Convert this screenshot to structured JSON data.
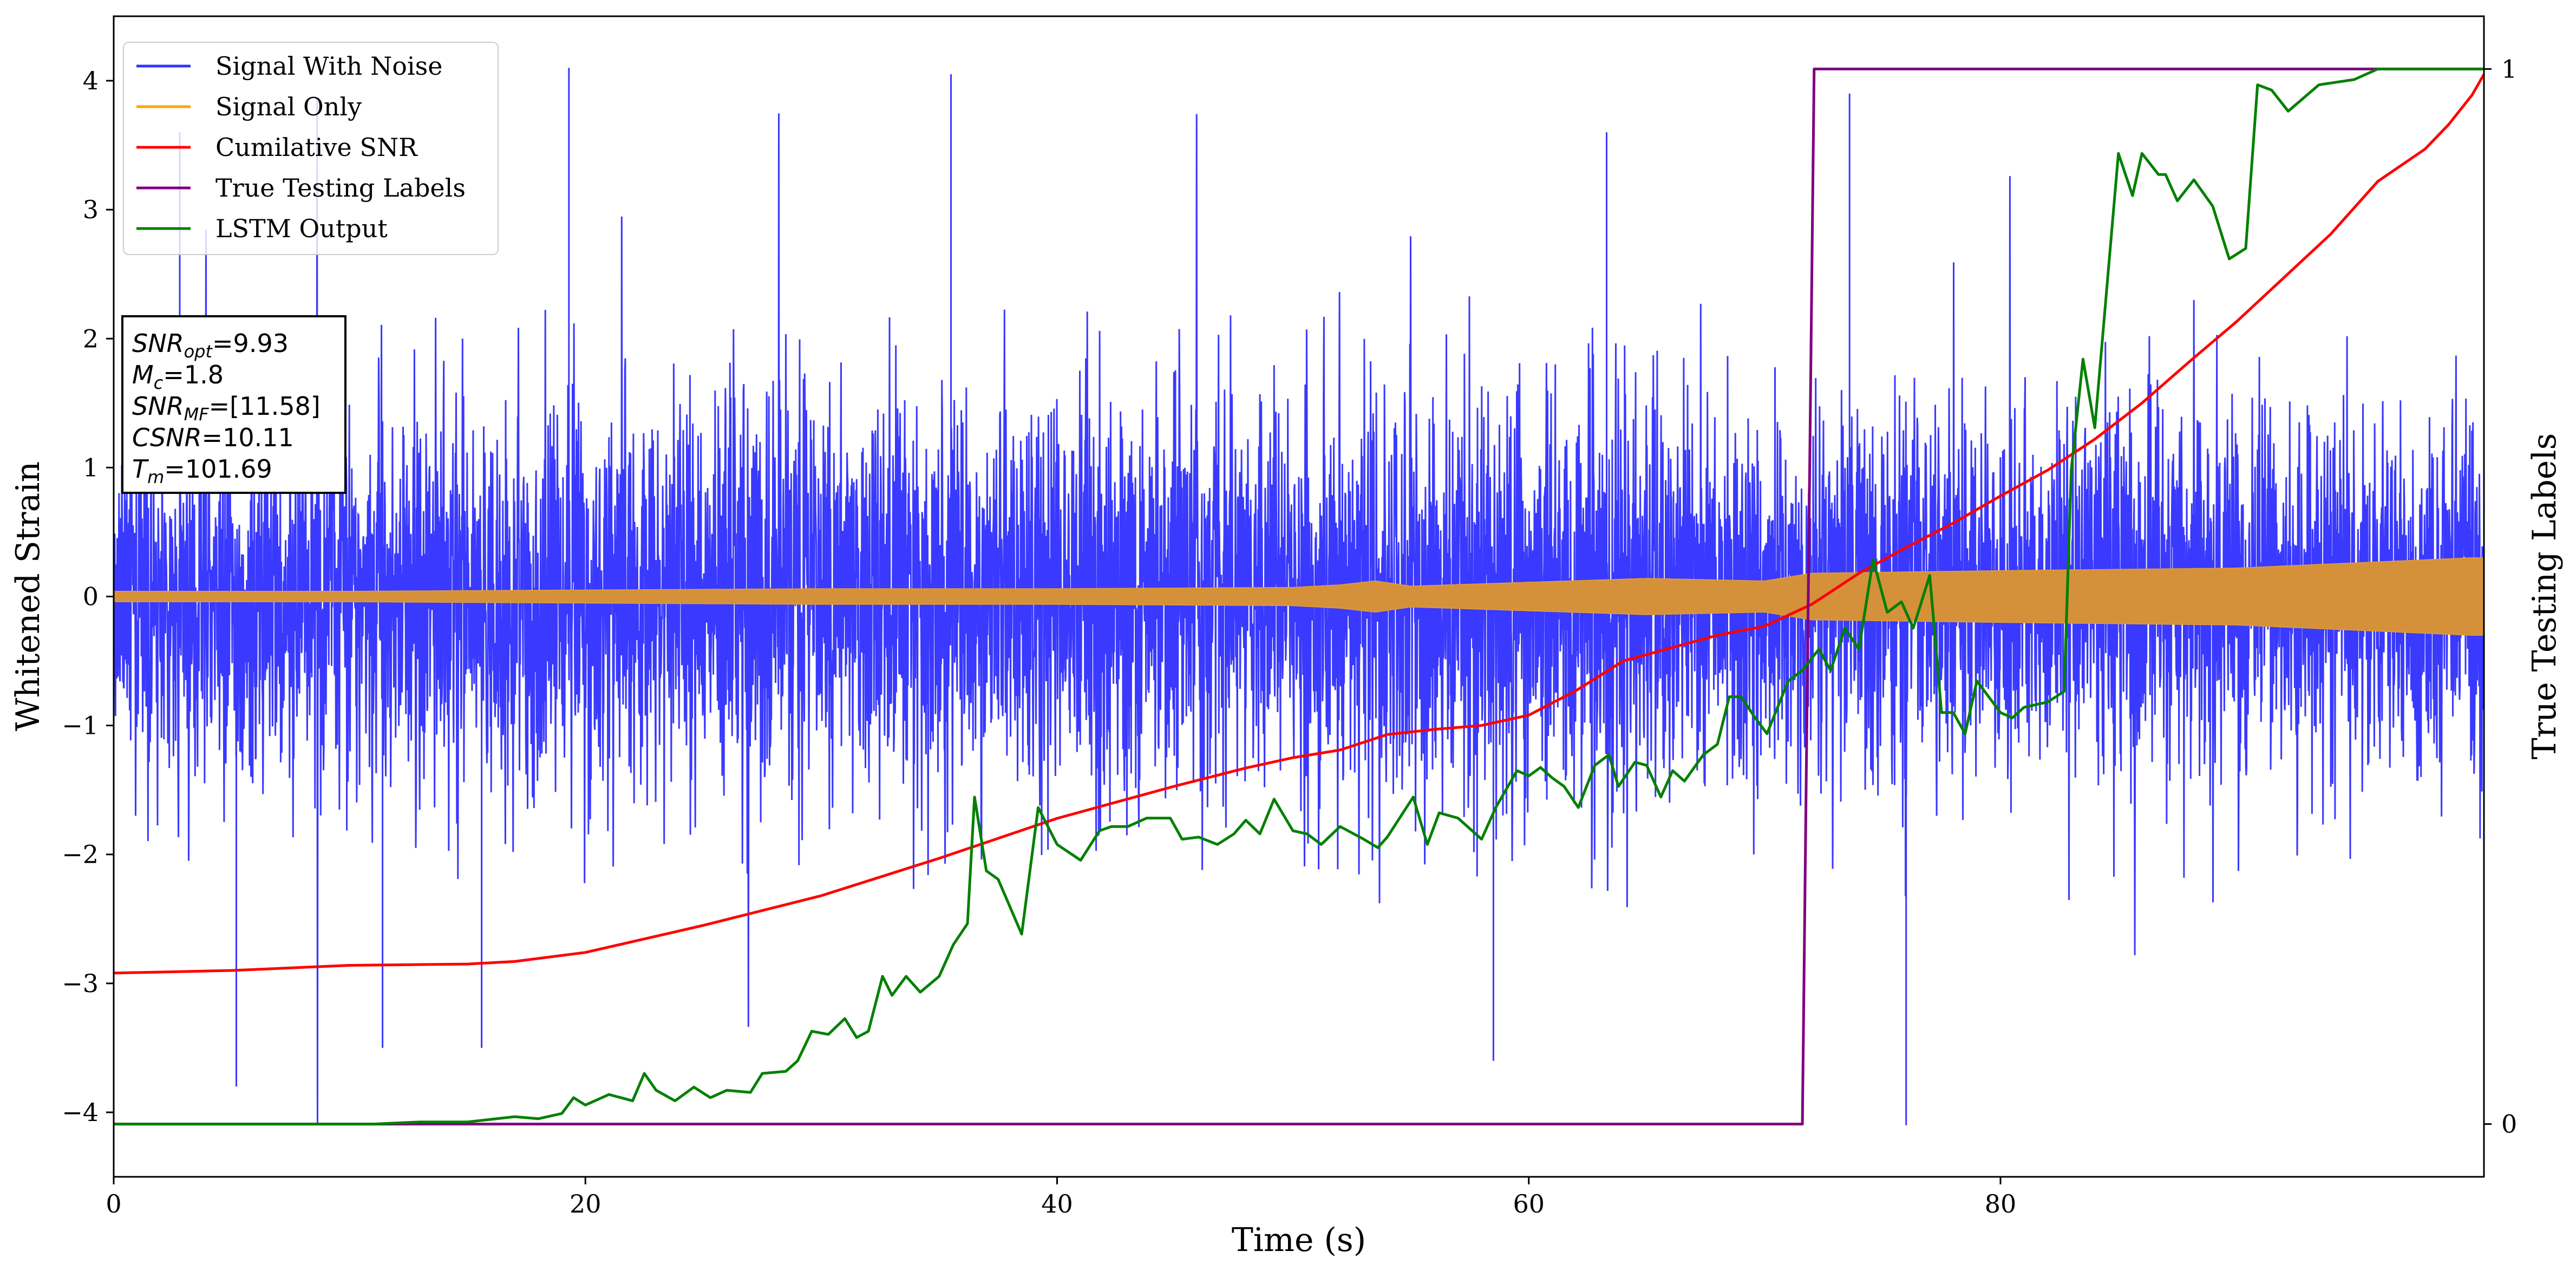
{
  "chart_data": {
    "type": "line",
    "xlabel": "Time (s)",
    "ylabel": "Whitened Strain",
    "y2label": "True Testing Labels",
    "xlim": [
      0,
      100.5
    ],
    "ylim": [
      -4.5,
      4.5
    ],
    "y2lim": [
      -0.05,
      1.05
    ],
    "x_ticks": [
      0,
      20,
      40,
      60,
      80
    ],
    "x_tick_labels": [
      "0",
      "20",
      "40",
      "60",
      "80"
    ],
    "y_ticks": [
      -4,
      -3,
      -2,
      -1,
      0,
      1,
      2,
      3,
      4
    ],
    "y_tick_labels": [
      "−4",
      "−3",
      "−2",
      "−1",
      "0",
      "1",
      "2",
      "3",
      "4"
    ],
    "y2_ticks": [
      0,
      1
    ],
    "y2_tick_labels": [
      "0",
      "1"
    ],
    "grid": false,
    "legend_position": "top-left",
    "series": [
      {
        "name": "Signal With Noise",
        "axis": "left",
        "color": "#3333ff",
        "kind": "dense-noise",
        "amplitude_envelope": {
          "x": [
            0,
            20,
            40,
            60,
            72,
            80,
            100
          ],
          "typical_abs": [
            0.8,
            0.9,
            0.9,
            0.9,
            0.9,
            0.9,
            0.85
          ]
        },
        "notable_peaks": [
          {
            "x": 19.3,
            "y": 4.1
          },
          {
            "x": 35.5,
            "y": 4.05
          },
          {
            "x": 73.6,
            "y": 3.9
          },
          {
            "x": 2.8,
            "y": 3.6
          },
          {
            "x": 5.2,
            "y": -3.8
          },
          {
            "x": 63.3,
            "y": 3.6
          },
          {
            "x": 76.0,
            "y": -4.1
          },
          {
            "x": 58.5,
            "y": -3.6
          },
          {
            "x": 15.6,
            "y": -3.5
          },
          {
            "x": 11.4,
            "y": -3.5
          }
        ]
      },
      {
        "name": "Signal Only",
        "axis": "left",
        "color": "#ffa500",
        "kind": "oscillation-band",
        "envelope": {
          "x": [
            0,
            10,
            20,
            30,
            40,
            50,
            52,
            53.5,
            55,
            60,
            65,
            70,
            72,
            80,
            90,
            95,
            100
          ],
          "half_width": [
            0.04,
            0.04,
            0.05,
            0.06,
            0.06,
            0.07,
            0.09,
            0.12,
            0.08,
            0.11,
            0.14,
            0.12,
            0.18,
            0.2,
            0.22,
            0.26,
            0.3
          ]
        }
      },
      {
        "name": "Cumilative SNR",
        "axis": "left",
        "color": "#ff0000",
        "points": [
          [
            0,
            -2.92
          ],
          [
            5,
            -2.9
          ],
          [
            10,
            -2.86
          ],
          [
            15,
            -2.85
          ],
          [
            17,
            -2.83
          ],
          [
            20,
            -2.76
          ],
          [
            25,
            -2.55
          ],
          [
            30,
            -2.32
          ],
          [
            35,
            -2.03
          ],
          [
            40,
            -1.72
          ],
          [
            45,
            -1.47
          ],
          [
            48,
            -1.33
          ],
          [
            50,
            -1.25
          ],
          [
            52,
            -1.19
          ],
          [
            54,
            -1.07
          ],
          [
            56,
            -1.03
          ],
          [
            58,
            -1.0
          ],
          [
            60,
            -0.92
          ],
          [
            62,
            -0.73
          ],
          [
            64,
            -0.5
          ],
          [
            66,
            -0.4
          ],
          [
            68,
            -0.3
          ],
          [
            70,
            -0.23
          ],
          [
            72,
            -0.06
          ],
          [
            74,
            0.18
          ],
          [
            76,
            0.38
          ],
          [
            78,
            0.57
          ],
          [
            80,
            0.78
          ],
          [
            82,
            0.98
          ],
          [
            84,
            1.22
          ],
          [
            86,
            1.5
          ],
          [
            88,
            1.82
          ],
          [
            90,
            2.13
          ],
          [
            92,
            2.47
          ],
          [
            94,
            2.81
          ],
          [
            96,
            3.22
          ],
          [
            98,
            3.47
          ],
          [
            99,
            3.66
          ],
          [
            100,
            3.89
          ],
          [
            100.5,
            4.05
          ]
        ]
      },
      {
        "name": "True Testing Labels",
        "axis": "right",
        "color": "#800080",
        "points": [
          [
            0,
            0
          ],
          [
            71.6,
            0
          ],
          [
            72.1,
            1
          ],
          [
            100.5,
            1
          ]
        ]
      },
      {
        "name": "LSTM Output",
        "axis": "right",
        "color": "#008000",
        "points": [
          [
            0,
            0
          ],
          [
            11,
            0
          ],
          [
            13,
            0.002
          ],
          [
            15,
            0.002
          ],
          [
            17,
            0.007
          ],
          [
            18,
            0.005
          ],
          [
            19,
            0.01
          ],
          [
            19.5,
            0.025
          ],
          [
            20,
            0.018
          ],
          [
            21,
            0.028
          ],
          [
            22,
            0.022
          ],
          [
            22.5,
            0.048
          ],
          [
            23,
            0.032
          ],
          [
            23.8,
            0.022
          ],
          [
            24.6,
            0.035
          ],
          [
            25.3,
            0.025
          ],
          [
            26,
            0.032
          ],
          [
            27,
            0.03
          ],
          [
            27.5,
            0.048
          ],
          [
            28.5,
            0.05
          ],
          [
            29,
            0.06
          ],
          [
            29.6,
            0.088
          ],
          [
            30.3,
            0.085
          ],
          [
            31,
            0.1
          ],
          [
            31.5,
            0.082
          ],
          [
            32,
            0.088
          ],
          [
            32.6,
            0.14
          ],
          [
            33,
            0.122
          ],
          [
            33.6,
            0.14
          ],
          [
            34.2,
            0.125
          ],
          [
            35,
            0.14
          ],
          [
            35.6,
            0.17
          ],
          [
            36.2,
            0.19
          ],
          [
            36.5,
            0.31
          ],
          [
            37,
            0.24
          ],
          [
            37.5,
            0.232
          ],
          [
            38.5,
            0.18
          ],
          [
            39.2,
            0.3
          ],
          [
            40,
            0.265
          ],
          [
            41,
            0.25
          ],
          [
            41.8,
            0.278
          ],
          [
            42.3,
            0.282
          ],
          [
            43,
            0.282
          ],
          [
            43.8,
            0.29
          ],
          [
            44.8,
            0.29
          ],
          [
            45.3,
            0.27
          ],
          [
            46,
            0.272
          ],
          [
            46.8,
            0.265
          ],
          [
            47.5,
            0.275
          ],
          [
            48,
            0.288
          ],
          [
            48.6,
            0.275
          ],
          [
            49.2,
            0.308
          ],
          [
            50,
            0.278
          ],
          [
            50.6,
            0.275
          ],
          [
            51.2,
            0.265
          ],
          [
            52,
            0.282
          ],
          [
            53,
            0.27
          ],
          [
            53.6,
            0.262
          ],
          [
            54,
            0.272
          ],
          [
            55.1,
            0.31
          ],
          [
            55.7,
            0.265
          ],
          [
            56.2,
            0.295
          ],
          [
            57,
            0.29
          ],
          [
            58,
            0.27
          ],
          [
            58.6,
            0.3
          ],
          [
            59.5,
            0.335
          ],
          [
            60,
            0.33
          ],
          [
            60.5,
            0.338
          ],
          [
            61,
            0.328
          ],
          [
            61.5,
            0.32
          ],
          [
            62.1,
            0.3
          ],
          [
            62.8,
            0.34
          ],
          [
            63.4,
            0.35
          ],
          [
            63.8,
            0.32
          ],
          [
            64.5,
            0.343
          ],
          [
            65,
            0.34
          ],
          [
            65.6,
            0.31
          ],
          [
            66.1,
            0.335
          ],
          [
            66.6,
            0.325
          ],
          [
            67.4,
            0.35
          ],
          [
            68,
            0.36
          ],
          [
            68.5,
            0.405
          ],
          [
            69,
            0.405
          ],
          [
            69.6,
            0.385
          ],
          [
            70.1,
            0.37
          ],
          [
            71,
            0.42
          ],
          [
            71.6,
            0.43
          ],
          [
            72.3,
            0.45
          ],
          [
            72.8,
            0.43
          ],
          [
            73.4,
            0.47
          ],
          [
            74,
            0.45
          ],
          [
            74.6,
            0.535
          ],
          [
            75.2,
            0.485
          ],
          [
            75.8,
            0.495
          ],
          [
            76.3,
            0.47
          ],
          [
            77,
            0.52
          ],
          [
            77.5,
            0.39
          ],
          [
            78,
            0.39
          ],
          [
            78.5,
            0.37
          ],
          [
            79,
            0.42
          ],
          [
            80,
            0.39
          ],
          [
            80.5,
            0.385
          ],
          [
            81,
            0.395
          ],
          [
            82,
            0.4
          ],
          [
            82.7,
            0.41
          ],
          [
            83,
            0.62
          ],
          [
            83.5,
            0.725
          ],
          [
            84,
            0.66
          ],
          [
            85,
            0.92
          ],
          [
            85.6,
            0.88
          ],
          [
            86,
            0.92
          ],
          [
            86.7,
            0.9
          ],
          [
            87,
            0.9
          ],
          [
            87.5,
            0.875
          ],
          [
            88.2,
            0.895
          ],
          [
            89,
            0.87
          ],
          [
            89.7,
            0.82
          ],
          [
            90.4,
            0.83
          ],
          [
            90.9,
            0.985
          ],
          [
            91.5,
            0.98
          ],
          [
            92.2,
            0.96
          ],
          [
            93.5,
            0.985
          ],
          [
            95,
            0.99
          ],
          [
            96,
            1.0
          ],
          [
            100.5,
            1.0
          ]
        ]
      }
    ],
    "annotation_lines": [
      {
        "name": "snr-opt",
        "base": "SNR",
        "sub": "opt",
        "value": "=9.93"
      },
      {
        "name": "chirp-mass",
        "base": "M",
        "sub": "c",
        "value": "=1.8"
      },
      {
        "name": "snr-mf",
        "base": "SNR",
        "sub": "MF",
        "value": "=[11.58]"
      },
      {
        "name": "csnr",
        "base": "CSNR",
        "sub": "",
        "value": "=10.11"
      },
      {
        "name": "t-m",
        "base": "T",
        "sub": "m",
        "value": "=101.69"
      }
    ]
  }
}
